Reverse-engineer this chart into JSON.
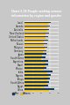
{
  "title": "Chart 2.18 People seeking science\ninformation by region and gender",
  "categories": [
    "Israel",
    "Canada",
    "Australia",
    "New Zealand",
    "United States",
    "Netherlands",
    "Taiwan",
    "Malaysia",
    "Germany",
    "Japan",
    "South Korea",
    "Argentina",
    "Brazil",
    "Mexico",
    "India",
    "Nigeria",
    "Kenya",
    "South Africa",
    "Egypt",
    "China"
  ],
  "men": [
    62,
    60,
    58,
    57,
    55,
    54,
    53,
    52,
    51,
    50,
    49,
    55,
    54,
    50,
    65,
    62,
    60,
    58,
    55,
    70
  ],
  "women": [
    55,
    52,
    50,
    49,
    48,
    45,
    44,
    46,
    42,
    40,
    38,
    48,
    47,
    44,
    50,
    55,
    52,
    50,
    45,
    58
  ],
  "men_color": "#1a3a5c",
  "women_color": "#e8b820",
  "header_color": "#2c2c2c",
  "background_color": "#c8c8c8",
  "bar_background": "#b0b0b0",
  "bar_height": 0.38,
  "xlim": [
    0,
    80
  ],
  "legend_men": "Men",
  "legend_women": "Women",
  "title_fontsize": 2.2,
  "label_fontsize": 1.8,
  "tick_fontsize": 1.5
}
